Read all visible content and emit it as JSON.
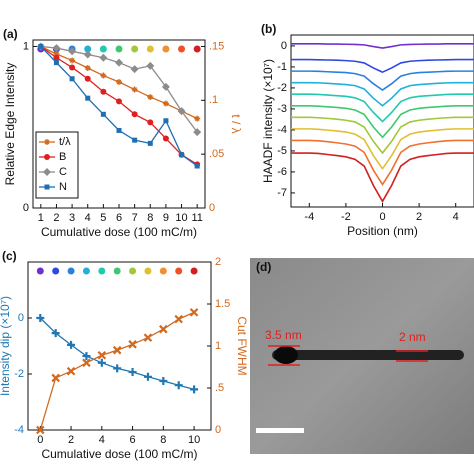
{
  "chart_data": [
    {
      "type": "line",
      "panel_label": "(a)",
      "xlabel": "Cumulative dose (100 mC/m)",
      "ylabel": "Relative Edge Intensity",
      "y2label": "t / λ",
      "categories": [
        "1",
        "2",
        "3",
        "4",
        "5",
        "6",
        "7",
        "8",
        "9",
        "10",
        "11"
      ],
      "ylim": [
        0,
        1.04
      ],
      "yticks": [
        0,
        1
      ],
      "y2lim": [
        0,
        0.156
      ],
      "y2ticks": [
        0,
        {
          "value": 0.05,
          "label": ".05"
        },
        {
          "value": 0.1,
          "label": ".1"
        },
        {
          "value": 0.15,
          "label": ".15"
        }
      ],
      "ycolor": "#111111",
      "y2color": "#d2691e",
      "dose_colors": [
        "#7030d0",
        "#3048e0",
        "#2a80e0",
        "#22b0d8",
        "#22c8b0",
        "#40c870",
        "#a0c838",
        "#e0c030",
        "#f09030",
        "#f05028",
        "#d02020"
      ],
      "series": [
        {
          "name": "t/λ",
          "color": "#d2691e",
          "marker": "star",
          "axis": "y2",
          "values": [
            0.15,
            0.143,
            0.137,
            0.13,
            0.123,
            0.117,
            0.11,
            0.103,
            0.097,
            0.09,
            0.083
          ]
        },
        {
          "name": "B",
          "color": "#e02020",
          "marker": "circle",
          "values": [
            1,
            0.93,
            0.87,
            0.8,
            0.72,
            0.66,
            0.58,
            0.53,
            0.43,
            0.33,
            0.27
          ]
        },
        {
          "name": "C",
          "color": "#8c8c8c",
          "marker": "diamond",
          "values": [
            1,
            0.99,
            0.97,
            0.95,
            0.93,
            0.9,
            0.86,
            0.88,
            0.75,
            0.6,
            0.47
          ]
        },
        {
          "name": "N",
          "color": "#1f6fb4",
          "marker": "square",
          "values": [
            1,
            0.9,
            0.8,
            0.68,
            0.58,
            0.48,
            0.42,
            0.4,
            0.54,
            0.33,
            0.26
          ]
        }
      ]
    },
    {
      "type": "line",
      "panel_label": "(b)",
      "xlabel": "Position (nm)",
      "ylabel": "HAADF intensity (×10⁷)",
      "x": [
        -5,
        -4.5,
        -4,
        -3.5,
        -3,
        -2.5,
        -2,
        -1.5,
        -1,
        -0.5,
        0,
        0.5,
        1,
        1.5,
        2,
        2.5,
        3,
        3.5,
        4,
        4.5,
        5
      ],
      "xlim": [
        -5,
        5
      ],
      "xticks": [
        -4,
        -2,
        0,
        2,
        4
      ],
      "ylim": [
        -7.67,
        0.52
      ],
      "yticks": [
        0,
        -1,
        -2,
        -3,
        -4,
        -5,
        -6,
        -7
      ],
      "series": [
        {
          "color": "#7030d0",
          "values": [
            0.1,
            0.1,
            0.1,
            0.1,
            0.09,
            0.09,
            0.08,
            0.07,
            0.05,
            -0.03,
            -0.1,
            -0.03,
            0.05,
            0.07,
            0.08,
            0.09,
            0.09,
            0.1,
            0.1,
            0.1,
            0.1
          ]
        },
        {
          "color": "#3048e0",
          "values": [
            -0.65,
            -0.65,
            -0.65,
            -0.66,
            -0.67,
            -0.68,
            -0.7,
            -0.73,
            -0.81,
            -1.05,
            -1.25,
            -1.05,
            -0.81,
            -0.73,
            -0.7,
            -0.68,
            -0.67,
            -0.66,
            -0.65,
            -0.65,
            -0.65
          ]
        },
        {
          "color": "#2a80e0",
          "values": [
            -1.2,
            -1.2,
            -1.2,
            -1.21,
            -1.23,
            -1.25,
            -1.27,
            -1.32,
            -1.44,
            -1.8,
            -2.1,
            -1.8,
            -1.44,
            -1.32,
            -1.27,
            -1.25,
            -1.23,
            -1.21,
            -1.2,
            -1.2,
            -1.2
          ]
        },
        {
          "color": "#22b0d8",
          "values": [
            -1.75,
            -1.75,
            -1.75,
            -1.76,
            -1.78,
            -1.81,
            -1.84,
            -1.89,
            -2.05,
            -2.49,
            -2.85,
            -2.49,
            -2.05,
            -1.89,
            -1.84,
            -1.81,
            -1.78,
            -1.76,
            -1.75,
            -1.75,
            -1.75
          ]
        },
        {
          "color": "#22c8b0",
          "values": [
            -2.3,
            -2.3,
            -2.3,
            -2.31,
            -2.34,
            -2.37,
            -2.4,
            -2.47,
            -2.65,
            -3.17,
            -3.6,
            -3.17,
            -2.65,
            -2.47,
            -2.4,
            -2.37,
            -2.34,
            -2.31,
            -2.3,
            -2.3,
            -2.3
          ]
        },
        {
          "color": "#40c870",
          "values": [
            -2.85,
            -2.85,
            -2.85,
            -2.87,
            -2.9,
            -2.93,
            -2.97,
            -3.05,
            -3.26,
            -3.86,
            -4.35,
            -3.86,
            -3.26,
            -3.05,
            -2.97,
            -2.93,
            -2.9,
            -2.87,
            -2.85,
            -2.85,
            -2.85
          ]
        },
        {
          "color": "#a0c838",
          "values": [
            -3.4,
            -3.4,
            -3.4,
            -3.42,
            -3.45,
            -3.49,
            -3.54,
            -3.62,
            -3.86,
            -4.54,
            -5.1,
            -4.54,
            -3.86,
            -3.62,
            -3.54,
            -3.49,
            -3.45,
            -3.42,
            -3.4,
            -3.4,
            -3.4
          ]
        },
        {
          "color": "#e0c030",
          "values": [
            -3.95,
            -3.95,
            -3.95,
            -3.97,
            -4.01,
            -4.05,
            -4.1,
            -4.2,
            -4.46,
            -5.22,
            -5.85,
            -5.22,
            -4.46,
            -4.2,
            -4.1,
            -4.05,
            -4.01,
            -3.97,
            -3.95,
            -3.95,
            -3.95
          ]
        },
        {
          "color": "#f07030",
          "values": [
            -4.5,
            -4.5,
            -4.5,
            -4.52,
            -4.56,
            -4.61,
            -4.67,
            -4.77,
            -5.07,
            -5.91,
            -6.6,
            -5.91,
            -5.07,
            -4.77,
            -4.67,
            -4.61,
            -4.56,
            -4.52,
            -4.5,
            -4.5,
            -4.5
          ]
        },
        {
          "color": "#d02020",
          "values": [
            -5.1,
            -5.1,
            -5.1,
            -5.12,
            -5.17,
            -5.22,
            -5.28,
            -5.4,
            -5.72,
            -6.64,
            -7.4,
            -6.64,
            -5.72,
            -5.4,
            -5.28,
            -5.22,
            -5.17,
            -5.12,
            -5.1,
            -5.1,
            -5.1
          ]
        }
      ]
    },
    {
      "type": "line",
      "panel_label": "(c)",
      "xlabel": "Cumulative dose (100 mC/m)",
      "ylabel": "Intensity dip (×10⁷)",
      "y2label": "Cut FWHM",
      "x": [
        0,
        1,
        2,
        3,
        4,
        5,
        6,
        7,
        8,
        9,
        10
      ],
      "xlim": [
        -0.8,
        11.1
      ],
      "xticks": [
        0,
        2,
        4,
        6,
        8,
        10
      ],
      "ylim": [
        -4,
        2
      ],
      "yticks": [
        -4,
        -2,
        0
      ],
      "y2lim": [
        0,
        2
      ],
      "y2ticks": [
        0,
        {
          "value": 0.5,
          "label": ".5"
        },
        1,
        1.5,
        2
      ],
      "ycolor": "#1f77b4",
      "y2color": "#d2691e",
      "dose_colors": [
        "#7030d0",
        "#3048e0",
        "#2a80e0",
        "#22b0d8",
        "#22c8b0",
        "#40c870",
        "#a0c838",
        "#e0c030",
        "#f09030",
        "#f05028",
        "#d02020"
      ],
      "series": [
        {
          "color": "#1f77b4",
          "marker": "plus",
          "values": [
            0,
            -0.54,
            -0.96,
            -1.36,
            -1.6,
            -1.8,
            -1.93,
            -2.1,
            -2.25,
            -2.4,
            -2.55
          ]
        },
        {
          "color": "#d2691e",
          "marker": "cross",
          "axis": "y2",
          "values": [
            0,
            0.62,
            0.7,
            0.8,
            0.89,
            0.95,
            1.02,
            1.1,
            1.2,
            1.32,
            1.4
          ]
        }
      ]
    }
  ],
  "image": {
    "panel_label": "(d)",
    "annotations": [
      "3.5 nm",
      "2 nm"
    ]
  }
}
